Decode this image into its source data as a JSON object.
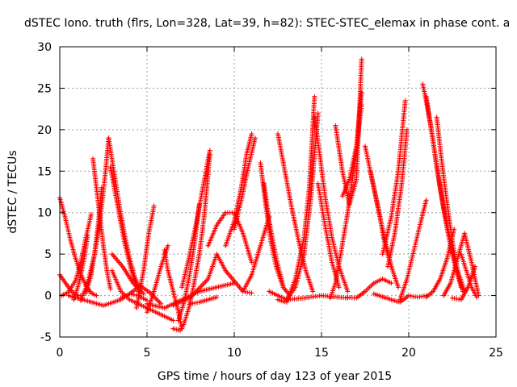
{
  "chart_data": {
    "type": "scatter",
    "title": "dSTEC Iono. truth (flrs, Lon=328, Lat=39, h=82): STEC-STEC_elemax in phase cont. a",
    "xlabel": "GPS time / hours of day 123 of year 2015",
    "ylabel": "dSTEC  / TECUs",
    "xlim": [
      0,
      25
    ],
    "ylim": [
      -5,
      30
    ],
    "xticks": [
      "0",
      "5",
      "10",
      "15",
      "20",
      "25"
    ],
    "yticks": [
      "-5",
      "0",
      "5",
      "10",
      "15",
      "20",
      "25",
      "30"
    ],
    "grid": true,
    "marker": "+",
    "marker_color": "#ff0000",
    "series": [
      {
        "x": [
          0.0,
          0.3,
          0.6,
          0.9,
          1.2,
          1.5,
          1.8,
          2.1
        ],
        "y": [
          11.8,
          9.5,
          6.8,
          4.5,
          2.6,
          1.2,
          0.3,
          0.0
        ]
      },
      {
        "x": [
          0.0,
          0.3,
          0.6,
          0.9,
          1.2
        ],
        "y": [
          2.5,
          1.6,
          0.7,
          0.1,
          0.0
        ]
      },
      {
        "x": [
          0.1,
          0.5,
          0.9,
          1.2,
          1.5,
          1.8
        ],
        "y": [
          0.0,
          0.4,
          1.8,
          4.0,
          7.0,
          9.8
        ]
      },
      {
        "x": [
          0.8,
          1.1,
          1.4,
          1.6
        ],
        "y": [
          -0.5,
          1.5,
          4.5,
          7.2
        ]
      },
      {
        "x": [
          1.2,
          1.6,
          2.0,
          2.3,
          2.6,
          2.8
        ],
        "y": [
          -0.6,
          1.5,
          5.0,
          9.0,
          14.5,
          19.0
        ]
      },
      {
        "x": [
          1.9,
          2.1,
          2.3,
          2.5,
          2.7,
          2.9
        ],
        "y": [
          16.5,
          13.0,
          9.5,
          6.0,
          3.0,
          0.8
        ]
      },
      {
        "x": [
          1.5,
          1.8,
          2.0,
          2.2,
          2.4
        ],
        "y": [
          0.3,
          2.5,
          5.2,
          8.5,
          13.0
        ]
      },
      {
        "x": [
          2.8,
          3.1,
          3.4,
          3.7,
          4.0,
          4.3,
          4.6
        ],
        "y": [
          19.0,
          15.0,
          11.0,
          7.5,
          4.5,
          2.2,
          0.6
        ]
      },
      {
        "x": [
          2.9,
          3.3,
          3.7,
          4.1,
          4.5
        ],
        "y": [
          15.5,
          11.0,
          6.5,
          3.0,
          0.5
        ]
      },
      {
        "x": [
          3.0,
          3.6,
          4.2,
          4.8
        ],
        "y": [
          5.0,
          3.5,
          1.5,
          0.2
        ]
      },
      {
        "x": [
          0.5,
          1.5,
          2.5,
          3.5,
          4.0,
          4.5,
          5.0
        ],
        "y": [
          0.0,
          -0.6,
          -1.2,
          -0.5,
          0.2,
          0.0,
          -0.6
        ]
      },
      {
        "x": [
          3.0,
          3.5,
          4.0,
          4.5,
          5.0,
          5.5,
          6.0,
          6.5
        ],
        "y": [
          3.0,
          0.5,
          -0.5,
          -1.0,
          -1.5,
          -2.0,
          -2.5,
          -3.0
        ]
      },
      {
        "x": [
          3.5,
          4.0,
          4.6,
          5.2,
          5.8
        ],
        "y": [
          -0.3,
          0.2,
          1.2,
          0.3,
          -1.0
        ]
      },
      {
        "x": [
          4.4,
          4.8,
          5.1,
          5.4
        ],
        "y": [
          -1.5,
          3.0,
          7.5,
          10.8
        ]
      },
      {
        "x": [
          5.0,
          5.4,
          5.8,
          6.2
        ],
        "y": [
          -2.0,
          0.5,
          3.5,
          6.0
        ]
      },
      {
        "x": [
          6.0,
          6.2,
          6.5,
          6.8,
          7.0
        ],
        "y": [
          5.5,
          3.0,
          0.5,
          -2.0,
          -4.0
        ]
      },
      {
        "x": [
          6.5,
          6.9,
          7.1,
          7.4,
          7.7,
          8.0,
          8.3,
          8.6
        ],
        "y": [
          -4.0,
          -4.2,
          -3.5,
          -1.5,
          1.5,
          5.0,
          10.0,
          17.0
        ]
      },
      {
        "x": [
          6.8,
          7.1,
          7.4,
          7.7,
          8.0
        ],
        "y": [
          -3.0,
          -1.0,
          2.0,
          6.0,
          11.0
        ]
      },
      {
        "x": [
          7.0,
          7.4,
          7.8,
          8.2,
          8.6
        ],
        "y": [
          1.0,
          4.5,
          8.5,
          13.0,
          17.5
        ]
      },
      {
        "x": [
          5.0,
          6.0,
          7.0,
          8.0,
          9.0,
          10.0
        ],
        "y": [
          -1.0,
          -1.5,
          -0.5,
          0.5,
          1.0,
          1.5
        ]
      },
      {
        "x": [
          6.5,
          7.5,
          8.5,
          9.0,
          9.5,
          10.5,
          11.0
        ],
        "y": [
          -1.2,
          -0.2,
          2.0,
          5.0,
          3.0,
          0.5,
          0.3
        ]
      },
      {
        "x": [
          7.5,
          8.0,
          8.5,
          9.0
        ],
        "y": [
          -1.0,
          -0.8,
          -0.5,
          -0.2
        ]
      },
      {
        "x": [
          8.5,
          9.0,
          9.5,
          10.0,
          10.5,
          11.0
        ],
        "y": [
          6.0,
          8.5,
          10.0,
          10.0,
          7.5,
          4.0
        ]
      },
      {
        "x": [
          9.5,
          10.0,
          10.4,
          10.7,
          11.0
        ],
        "y": [
          6.0,
          9.0,
          13.0,
          17.0,
          19.5
        ]
      },
      {
        "x": [
          10.0,
          10.4,
          10.8,
          11.2
        ],
        "y": [
          8.0,
          11.5,
          15.5,
          19.0
        ]
      },
      {
        "x": [
          10.5,
          11.0,
          11.5,
          12.0
        ],
        "y": [
          0.5,
          2.5,
          6.0,
          9.5
        ]
      },
      {
        "x": [
          11.5,
          11.8,
          12.1,
          12.4,
          12.8,
          13.2
        ],
        "y": [
          16.0,
          11.0,
          6.5,
          3.5,
          1.0,
          0.0
        ]
      },
      {
        "x": [
          11.7,
          12.0,
          12.4,
          12.8
        ],
        "y": [
          13.5,
          9.0,
          4.5,
          1.2
        ]
      },
      {
        "x": [
          12.5,
          12.9,
          13.3,
          13.7,
          14.1,
          14.5
        ],
        "y": [
          19.5,
          15.0,
          10.5,
          6.5,
          3.0,
          0.5
        ]
      },
      {
        "x": [
          12.5,
          13.0,
          13.5,
          14.0,
          14.3,
          14.6
        ],
        "y": [
          -0.5,
          -0.8,
          2.0,
          7.0,
          13.0,
          24.0
        ]
      },
      {
        "x": [
          13.0,
          13.5,
          14.0,
          14.4,
          14.8
        ],
        "y": [
          -0.5,
          1.0,
          5.0,
          12.0,
          22.0
        ]
      },
      {
        "x": [
          12.0,
          13.0,
          14.0,
          15.0,
          16.0,
          16.5
        ],
        "y": [
          0.5,
          -0.5,
          -0.3,
          0.0,
          -0.2,
          -0.3
        ]
      },
      {
        "x": [
          14.6,
          14.9,
          15.2,
          15.6,
          16.0,
          16.5
        ],
        "y": [
          21.5,
          17.0,
          12.0,
          7.0,
          3.5,
          0.5
        ]
      },
      {
        "x": [
          14.8,
          15.2,
          15.6,
          16.0
        ],
        "y": [
          13.5,
          8.5,
          4.0,
          1.0
        ]
      },
      {
        "x": [
          15.5,
          15.8,
          16.1,
          16.5,
          16.9,
          17.3
        ],
        "y": [
          -0.3,
          1.5,
          5.0,
          10.0,
          16.0,
          23.0
        ]
      },
      {
        "x": [
          15.8,
          16.2,
          16.6,
          17.0,
          17.3
        ],
        "y": [
          20.5,
          15.0,
          11.0,
          14.0,
          28.5
        ]
      },
      {
        "x": [
          16.2,
          16.6,
          17.0,
          17.3
        ],
        "y": [
          12.0,
          14.0,
          18.0,
          24.5
        ]
      },
      {
        "x": [
          17.5,
          17.9,
          18.3,
          18.6,
          19.0
        ],
        "y": [
          18.0,
          14.0,
          10.0,
          6.5,
          3.5
        ]
      },
      {
        "x": [
          17.8,
          18.2,
          18.6,
          19.0,
          19.4
        ],
        "y": [
          15.0,
          11.0,
          7.0,
          3.5,
          1.0
        ]
      },
      {
        "x": [
          16.5,
          17.0,
          17.5,
          18.0,
          18.5,
          19.0
        ],
        "y": [
          -0.2,
          -0.3,
          0.5,
          1.5,
          2.0,
          1.5
        ]
      },
      {
        "x": [
          18.5,
          19.0,
          19.4,
          19.8
        ],
        "y": [
          5.0,
          9.5,
          15.0,
          23.5
        ]
      },
      {
        "x": [
          18.8,
          19.2,
          19.6,
          19.9
        ],
        "y": [
          3.5,
          7.5,
          13.5,
          20.0
        ]
      },
      {
        "x": [
          18.0,
          19.0,
          19.5,
          20.0,
          20.5,
          21.0
        ],
        "y": [
          0.2,
          -0.5,
          -0.8,
          0.0,
          -0.2,
          0.0
        ]
      },
      {
        "x": [
          19.5,
          19.9,
          20.3,
          20.7,
          21.0
        ],
        "y": [
          -0.5,
          2.0,
          5.5,
          9.0,
          11.5
        ]
      },
      {
        "x": [
          20.8,
          21.0,
          21.3,
          21.6,
          22.0,
          22.4,
          22.8,
          23.2
        ],
        "y": [
          25.5,
          23.5,
          20.0,
          15.5,
          10.5,
          6.5,
          3.0,
          0.5
        ]
      },
      {
        "x": [
          21.0,
          21.4,
          21.8,
          22.2,
          22.6,
          23.0
        ],
        "y": [
          24.0,
          18.5,
          13.0,
          8.0,
          4.0,
          1.0
        ]
      },
      {
        "x": [
          21.6,
          21.9,
          22.2,
          22.5,
          22.8,
          23.1
        ],
        "y": [
          21.5,
          16.0,
          11.0,
          6.5,
          3.0,
          0.5
        ]
      },
      {
        "x": [
          21.0,
          21.4,
          21.8,
          22.2,
          22.6
        ],
        "y": [
          -0.2,
          0.5,
          2.0,
          4.5,
          8.0
        ]
      },
      {
        "x": [
          22.0,
          22.4,
          22.8,
          23.2,
          23.6,
          24.0
        ],
        "y": [
          0.0,
          1.5,
          4.5,
          7.5,
          4.0,
          0.0
        ]
      },
      {
        "x": [
          22.5,
          23.0,
          23.4,
          23.8
        ],
        "y": [
          -0.3,
          -0.5,
          1.0,
          3.5
        ]
      },
      {
        "x": [
          23.0,
          23.3,
          23.6,
          23.9
        ],
        "y": [
          5.0,
          3.0,
          1.0,
          -0.2
        ]
      }
    ]
  }
}
